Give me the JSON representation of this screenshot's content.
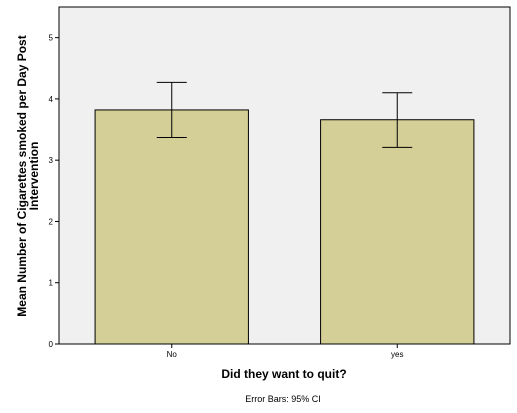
{
  "chart_data": {
    "type": "bar",
    "categories": [
      "No",
      "yes"
    ],
    "values": [
      3.82,
      3.66
    ],
    "error_bars": {
      "lower": [
        3.37,
        3.21
      ],
      "upper": [
        4.27,
        4.1
      ]
    },
    "ylim": [
      0,
      5.5
    ],
    "yticks": [
      0,
      1,
      2,
      3,
      4,
      5
    ],
    "ytick_labels": [
      "0",
      "1",
      "2",
      "3",
      "4",
      "5"
    ],
    "xlabel": "Did they want to quit?",
    "ylabel_lines": [
      "Mean Number of Cigarettes smoked per Day Post",
      "Intervention"
    ],
    "footnote": "Error Bars: 95% CI",
    "bar_color": "#d4cf96",
    "plot_background": "#f0f0f0",
    "grid": false,
    "legend": "none"
  }
}
